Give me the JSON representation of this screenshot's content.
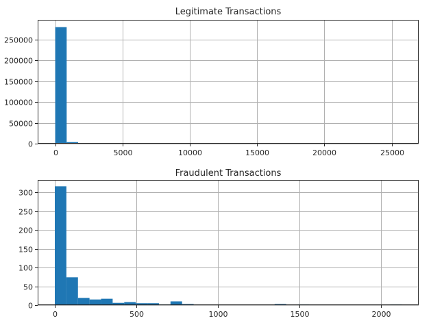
{
  "chart_data": [
    {
      "type": "bar",
      "histogram": true,
      "title": "Legitimate Transactions",
      "xlabel": "",
      "ylabel": "",
      "xlim": [
        -1300,
        27000
      ],
      "ylim": [
        0,
        297000
      ],
      "xticks": [
        0,
        5000,
        10000,
        15000,
        20000,
        25000
      ],
      "yticks": [
        0,
        50000,
        100000,
        150000,
        200000,
        250000
      ],
      "grid": true,
      "bar_color": "#1f77b4",
      "bin_edges": [
        0,
        853,
        1706,
        2559,
        3412,
        4265,
        5118,
        5971,
        6824,
        7677,
        8530,
        9383,
        10236,
        11089,
        11942,
        12795,
        13648,
        14501,
        15354,
        16207,
        17060,
        17913,
        18766,
        19619,
        20472,
        21325,
        22178,
        23031,
        23884,
        24737,
        25590
      ],
      "values": [
        279500,
        3700,
        700,
        200,
        80,
        30,
        15,
        8,
        5,
        3,
        2,
        1,
        1,
        1,
        0,
        0,
        0,
        0,
        1,
        0,
        0,
        0,
        0,
        0,
        0,
        0,
        0,
        0,
        0,
        1
      ]
    },
    {
      "type": "bar",
      "histogram": true,
      "title": "Fraudulent Transactions",
      "xlabel": "",
      "ylabel": "",
      "xlim": [
        -105,
        2230
      ],
      "ylim": [
        0,
        333
      ],
      "xticks": [
        0,
        500,
        1000,
        1500,
        2000
      ],
      "yticks": [
        0,
        50,
        100,
        150,
        200,
        250,
        300
      ],
      "grid": true,
      "bar_color": "#1f77b4",
      "bin_edges": [
        0,
        70.9,
        141.8,
        212.7,
        283.6,
        354.5,
        425.4,
        496.3,
        567.2,
        638.1,
        709.0,
        779.9,
        850.8,
        921.7,
        992.6,
        1063.5,
        1134.4,
        1205.3,
        1276.2,
        1347.1,
        1418.0,
        1488.9,
        1559.8,
        1630.7,
        1701.6,
        1772.5,
        1843.4,
        1914.3,
        1985.2,
        2056.1,
        2127.0
      ],
      "values": [
        316,
        74,
        19,
        15,
        17,
        6,
        8,
        5,
        5,
        2,
        10,
        3,
        0,
        1,
        1,
        1,
        0,
        1,
        1,
        3,
        0,
        2,
        0,
        0,
        0,
        1,
        0,
        0,
        0,
        2
      ]
    }
  ]
}
